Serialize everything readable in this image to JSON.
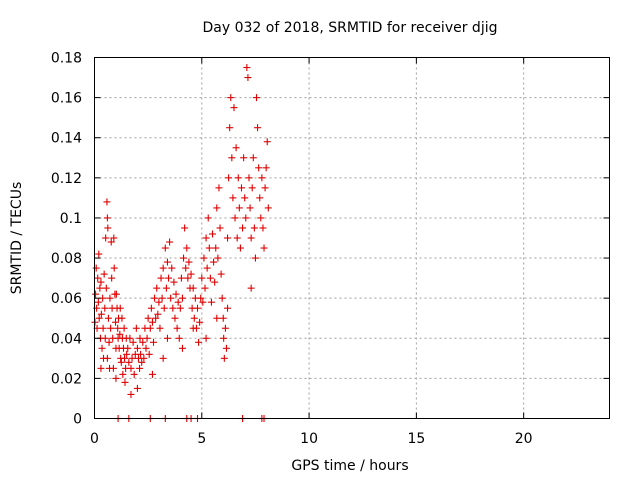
{
  "chart_data": {
    "type": "scatter",
    "title": "Day 032 of 2018, SRMTID for receiver djig",
    "xlabel": "GPS time / hours",
    "ylabel": "SRMTID / TECUs",
    "xlim": [
      0,
      24
    ],
    "ylim": [
      0,
      0.18
    ],
    "x_ticks": [
      0,
      5,
      10,
      15,
      20
    ],
    "x_tick_labels": [
      "0",
      "5",
      "10",
      "15",
      "20"
    ],
    "y_ticks": [
      0,
      0.02,
      0.04,
      0.06,
      0.08,
      0.1,
      0.12,
      0.14,
      0.16,
      0.18
    ],
    "y_tick_labels": [
      "0",
      "0.02",
      "0.04",
      "0.06",
      "0.08",
      "0.1",
      "0.12",
      "0.14",
      "0.16",
      "0.18"
    ],
    "grid": true,
    "marker": "plus",
    "color": "#e00000",
    "series": [
      {
        "points": [
          [
            0.02,
            0.048
          ],
          [
            0.05,
            0.062
          ],
          [
            0.08,
            0.075
          ],
          [
            0.1,
            0.055
          ],
          [
            0.12,
            0.045
          ],
          [
            0.15,
            0.07
          ],
          [
            0.18,
            0.058
          ],
          [
            0.2,
            0.082
          ],
          [
            0.22,
            0.05
          ],
          [
            0.25,
            0.065
          ],
          [
            0.28,
            0.04
          ],
          [
            0.3,
            0.068
          ],
          [
            0.32,
            0.052
          ],
          [
            0.35,
            0.035
          ],
          [
            0.38,
            0.06
          ],
          [
            0.4,
            0.045
          ],
          [
            0.42,
            0.03
          ],
          [
            0.45,
            0.072
          ],
          [
            0.48,
            0.055
          ],
          [
            0.5,
            0.04
          ],
          [
            0.52,
            0.09
          ],
          [
            0.55,
            0.065
          ],
          [
            0.58,
            0.108
          ],
          [
            0.6,
            0.1
          ],
          [
            0.62,
            0.095
          ],
          [
            0.65,
            0.05
          ],
          [
            0.68,
            0.038
          ],
          [
            0.7,
            0.025
          ],
          [
            0.72,
            0.06
          ],
          [
            0.75,
            0.045
          ],
          [
            0.78,
            0.088
          ],
          [
            0.8,
            0.07
          ],
          [
            0.82,
            0.055
          ],
          [
            0.85,
            0.04
          ],
          [
            0.88,
            0.025
          ],
          [
            0.9,
            0.09
          ],
          [
            0.92,
            0.075
          ],
          [
            0.95,
            0.062
          ],
          [
            0.98,
            0.048
          ],
          [
            1.0,
            0.035
          ],
          [
            1.02,
            0.062
          ],
          [
            1.05,
            0.055
          ],
          [
            1.08,
            0.045
          ],
          [
            1.1,
            0.04
          ],
          [
            1.12,
            0.05
          ],
          [
            1.15,
            0.035
          ],
          [
            1.18,
            0.042
          ],
          [
            1.2,
            0.055
          ],
          [
            1.22,
            0.03
          ],
          [
            1.25,
            0.028
          ],
          [
            1.28,
            0.05
          ],
          [
            1.3,
            0.04
          ],
          [
            1.32,
            0.022
          ],
          [
            1.35,
            0.035
          ],
          [
            1.38,
            0.045
          ],
          [
            1.4,
            0.03
          ],
          [
            1.42,
            0.018
          ],
          [
            1.45,
            0.025
          ],
          [
            1.48,
            0.04
          ],
          [
            1.5,
            0.032
          ],
          [
            1.55,
            0.035
          ],
          [
            1.6,
            0.028
          ],
          [
            1.65,
            0.04
          ],
          [
            1.7,
            0.025
          ],
          [
            1.75,
            0.03
          ],
          [
            1.8,
            0.038
          ],
          [
            1.85,
            0.022
          ],
          [
            1.9,
            0.032
          ],
          [
            1.95,
            0.045
          ],
          [
            2.0,
            0.035
          ],
          [
            2.0,
            0.015
          ],
          [
            2.05,
            0.03
          ],
          [
            2.1,
            0.025
          ],
          [
            2.12,
            0.04
          ],
          [
            2.15,
            0.032
          ],
          [
            2.2,
            0.028
          ],
          [
            2.25,
            0.038
          ],
          [
            2.3,
            0.03
          ],
          [
            2.35,
            0.045
          ],
          [
            2.4,
            0.035
          ],
          [
            2.45,
            0.04
          ],
          [
            2.5,
            0.05
          ],
          [
            2.55,
            0.032
          ],
          [
            2.6,
            0.045
          ],
          [
            2.65,
            0.055
          ],
          [
            2.7,
            0.048
          ],
          [
            2.75,
            0.038
          ],
          [
            2.8,
            0.06
          ],
          [
            2.85,
            0.05
          ],
          [
            2.9,
            0.065
          ],
          [
            2.95,
            0.052
          ],
          [
            3.0,
            0.058
          ],
          [
            3.05,
            0.045
          ],
          [
            3.1,
            0.07
          ],
          [
            3.15,
            0.06
          ],
          [
            3.2,
            0.075
          ],
          [
            3.25,
            0.055
          ],
          [
            3.3,
            0.085
          ],
          [
            3.35,
            0.065
          ],
          [
            3.4,
            0.078
          ],
          [
            3.45,
            0.07
          ],
          [
            3.5,
            0.088
          ],
          [
            3.55,
            0.06
          ],
          [
            3.6,
            0.075
          ],
          [
            3.65,
            0.055
          ],
          [
            3.7,
            0.068
          ],
          [
            3.75,
            0.05
          ],
          [
            3.8,
            0.062
          ],
          [
            3.85,
            0.045
          ],
          [
            3.9,
            0.058
          ],
          [
            3.95,
            0.04
          ],
          [
            4.0,
            0.055
          ],
          [
            4.05,
            0.07
          ],
          [
            4.1,
            0.06
          ],
          [
            4.15,
            0.08
          ],
          [
            4.2,
            0.095
          ],
          [
            4.25,
            0.075
          ],
          [
            4.3,
            0.085
          ],
          [
            4.35,
            0.07
          ],
          [
            4.4,
            0.078
          ],
          [
            4.45,
            0.065
          ],
          [
            4.5,
            0.072
          ],
          [
            4.55,
            0.055
          ],
          [
            4.6,
            0.065
          ],
          [
            4.65,
            0.05
          ],
          [
            4.7,
            0.06
          ],
          [
            4.75,
            0.045
          ],
          [
            4.8,
            0.055
          ],
          [
            4.85,
            0.038
          ],
          [
            4.9,
            0.048
          ],
          [
            4.95,
            0.06
          ],
          [
            5.0,
            0.07
          ],
          [
            5.05,
            0.058
          ],
          [
            5.1,
            0.08
          ],
          [
            5.15,
            0.065
          ],
          [
            5.2,
            0.09
          ],
          [
            5.25,
            0.075
          ],
          [
            5.3,
            0.1
          ],
          [
            5.35,
            0.085
          ],
          [
            5.4,
            0.07
          ],
          [
            5.45,
            0.058
          ],
          [
            5.5,
            0.092
          ],
          [
            5.55,
            0.078
          ],
          [
            5.6,
            0.068
          ],
          [
            5.65,
            0.085
          ],
          [
            5.7,
            0.105
          ],
          [
            5.75,
            0.08
          ],
          [
            5.8,
            0.115
          ],
          [
            5.85,
            0.095
          ],
          [
            5.9,
            0.072
          ],
          [
            5.95,
            0.06
          ],
          [
            6.0,
            0.05
          ],
          [
            6.02,
            0.04
          ],
          [
            6.05,
            0.03
          ],
          [
            6.1,
            0.045
          ],
          [
            6.15,
            0.035
          ],
          [
            6.2,
            0.09
          ],
          [
            6.25,
            0.12
          ],
          [
            6.3,
            0.145
          ],
          [
            6.35,
            0.16
          ],
          [
            6.4,
            0.13
          ],
          [
            6.45,
            0.11
          ],
          [
            6.5,
            0.155
          ],
          [
            6.55,
            0.1
          ],
          [
            6.6,
            0.135
          ],
          [
            6.65,
            0.09
          ],
          [
            6.7,
            0.12
          ],
          [
            6.75,
            0.105
          ],
          [
            6.8,
            0.085
          ],
          [
            6.85,
            0.115
          ],
          [
            6.9,
            0.095
          ],
          [
            6.95,
            0.13
          ],
          [
            7.0,
            0.11
          ],
          [
            7.05,
            0.1
          ],
          [
            7.1,
            0.175
          ],
          [
            7.15,
            0.17
          ],
          [
            7.2,
            0.12
          ],
          [
            7.25,
            0.105
          ],
          [
            7.3,
            0.09
          ],
          [
            7.35,
            0.115
          ],
          [
            7.4,
            0.13
          ],
          [
            7.45,
            0.095
          ],
          [
            7.5,
            0.08
          ],
          [
            7.55,
            0.16
          ],
          [
            7.6,
            0.145
          ],
          [
            7.65,
            0.125
          ],
          [
            7.7,
            0.11
          ],
          [
            7.75,
            0.1
          ],
          [
            7.8,
            0.12
          ],
          [
            7.85,
            0.095
          ],
          [
            7.9,
            0.085
          ],
          [
            7.95,
            0.115
          ],
          [
            8.0,
            0.125
          ],
          [
            8.05,
            0.138
          ],
          [
            8.1,
            0.105
          ],
          [
            0.3,
            0.025
          ],
          [
            0.6,
            0.03
          ],
          [
            1.0,
            0.02
          ],
          [
            1.7,
            0.012
          ],
          [
            2.7,
            0.022
          ],
          [
            3.2,
            0.03
          ],
          [
            3.4,
            0.04
          ],
          [
            4.1,
            0.035
          ],
          [
            4.6,
            0.045
          ],
          [
            5.2,
            0.04
          ],
          [
            5.7,
            0.05
          ],
          [
            6.2,
            0.055
          ],
          [
            7.3,
            0.065
          ]
        ]
      }
    ],
    "zero_markers_x": [
      1.1,
      1.6,
      2.6,
      3.3,
      4.3,
      4.5,
      4.8,
      6.9,
      7.8,
      7.9
    ]
  }
}
